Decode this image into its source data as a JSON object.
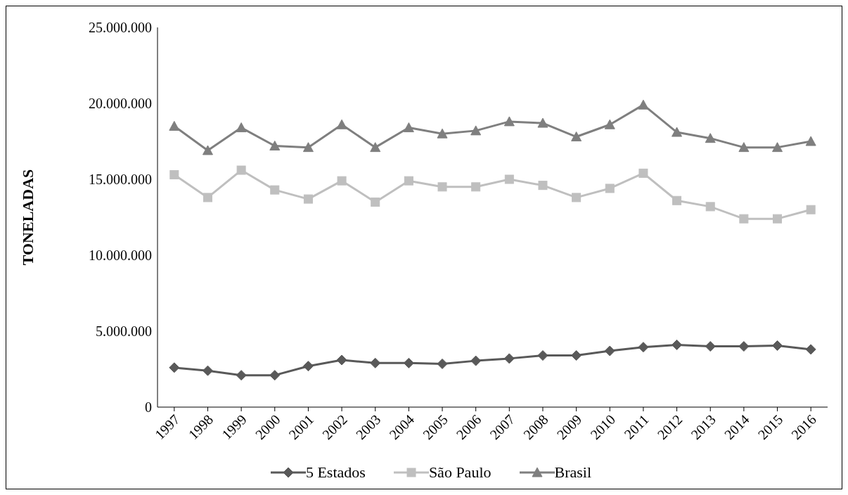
{
  "chart_data": {
    "type": "line",
    "ylabel": "TONELADAS",
    "categories": [
      "1997",
      "1998",
      "1999",
      "2000",
      "2001",
      "2002",
      "2003",
      "2004",
      "2005",
      "2006",
      "2007",
      "2008",
      "2009",
      "2010",
      "2011",
      "2012",
      "2013",
      "2014",
      "2015",
      "2016"
    ],
    "series": [
      {
        "name": "5 Estados",
        "color": "#595959",
        "marker": "diamond",
        "values": [
          2600000,
          2400000,
          2100000,
          2100000,
          2700000,
          3100000,
          2900000,
          2900000,
          2850000,
          3050000,
          3200000,
          3400000,
          3400000,
          3700000,
          3950000,
          4100000,
          4000000,
          4000000,
          4050000,
          3800000
        ]
      },
      {
        "name": "São Paulo",
        "color": "#bfbfbf",
        "marker": "square",
        "values": [
          15300000,
          13800000,
          15600000,
          14300000,
          13700000,
          14900000,
          13500000,
          14900000,
          14500000,
          14500000,
          15000000,
          14600000,
          13800000,
          14400000,
          15400000,
          13600000,
          13200000,
          12400000,
          12400000,
          13000000
        ]
      },
      {
        "name": "Brasil",
        "color": "#7f7f7f",
        "marker": "triangle",
        "values": [
          18500000,
          16900000,
          18400000,
          17200000,
          17100000,
          18600000,
          17100000,
          18400000,
          18000000,
          18200000,
          18800000,
          18700000,
          17800000,
          18600000,
          19900000,
          18100000,
          17700000,
          17100000,
          17100000,
          17500000
        ]
      }
    ],
    "ylim": [
      0,
      25000000
    ],
    "yticks": [
      0,
      {
        "value": 5000000,
        "label": "5.000.000"
      },
      {
        "value": 10000000,
        "label": "10.000.000"
      },
      {
        "value": 15000000,
        "label": "15.000.000"
      },
      {
        "value": 20000000,
        "label": "20.000.000"
      },
      {
        "value": 25000000,
        "label": "25.000.000"
      }
    ],
    "grid": false,
    "legend": "bottom",
    "line_style": "solid"
  }
}
